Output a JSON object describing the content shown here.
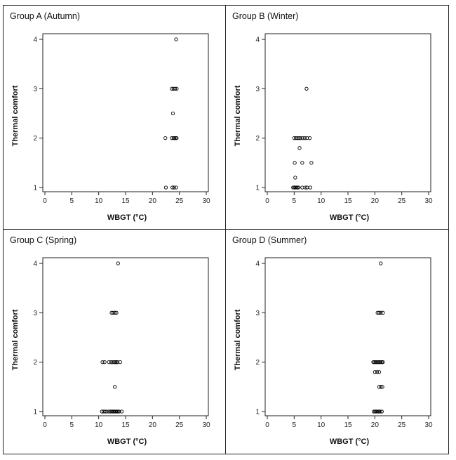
{
  "chart_data": [
    {
      "type": "scatter",
      "title": "Group A (Autumn)",
      "xlabel": "WBGT",
      "xunit": "(°C)",
      "ylabel": "Thermal comfort",
      "xlim": [
        0,
        30
      ],
      "ylim": [
        1,
        4
      ],
      "xticks": [
        0,
        5,
        10,
        15,
        20,
        25,
        30
      ],
      "yticks": [
        1,
        2,
        3,
        4
      ],
      "marker": "open-circle",
      "color": "#000000",
      "points": [
        {
          "x": 24.4,
          "y": 4
        },
        {
          "x": 23.6,
          "y": 3
        },
        {
          "x": 23.9,
          "y": 3
        },
        {
          "x": 24.2,
          "y": 3
        },
        {
          "x": 24.5,
          "y": 3
        },
        {
          "x": 23.8,
          "y": 2.5
        },
        {
          "x": 22.4,
          "y": 2
        },
        {
          "x": 23.6,
          "y": 2
        },
        {
          "x": 23.9,
          "y": 2
        },
        {
          "x": 24.1,
          "y": 2
        },
        {
          "x": 24.3,
          "y": 2
        },
        {
          "x": 24.5,
          "y": 2
        },
        {
          "x": 22.5,
          "y": 1
        },
        {
          "x": 23.7,
          "y": 1
        },
        {
          "x": 24.0,
          "y": 1
        },
        {
          "x": 24.4,
          "y": 1
        }
      ]
    },
    {
      "type": "scatter",
      "title": "Group B (Winter)",
      "xlabel": "WBGT",
      "xunit": "(°C)",
      "ylabel": "Thermal comfort",
      "xlim": [
        0,
        30
      ],
      "ylim": [
        1,
        4
      ],
      "xticks": [
        0,
        5,
        10,
        15,
        20,
        25,
        30
      ],
      "yticks": [
        1,
        2,
        3,
        4
      ],
      "marker": "open-circle",
      "color": "#000000",
      "points": [
        {
          "x": 7.3,
          "y": 3
        },
        {
          "x": 5.0,
          "y": 2
        },
        {
          "x": 5.3,
          "y": 2
        },
        {
          "x": 5.6,
          "y": 2
        },
        {
          "x": 5.9,
          "y": 2
        },
        {
          "x": 6.2,
          "y": 2
        },
        {
          "x": 6.6,
          "y": 2
        },
        {
          "x": 7.0,
          "y": 2
        },
        {
          "x": 7.4,
          "y": 2
        },
        {
          "x": 7.9,
          "y": 2
        },
        {
          "x": 6.0,
          "y": 1.8
        },
        {
          "x": 5.1,
          "y": 1.5
        },
        {
          "x": 6.5,
          "y": 1.5
        },
        {
          "x": 8.2,
          "y": 1.5
        },
        {
          "x": 5.2,
          "y": 1.2
        },
        {
          "x": 4.8,
          "y": 1
        },
        {
          "x": 5.0,
          "y": 1
        },
        {
          "x": 5.2,
          "y": 1
        },
        {
          "x": 5.4,
          "y": 1
        },
        {
          "x": 5.6,
          "y": 1
        },
        {
          "x": 5.8,
          "y": 1
        },
        {
          "x": 6.5,
          "y": 1
        },
        {
          "x": 7.1,
          "y": 1
        },
        {
          "x": 7.4,
          "y": 1
        },
        {
          "x": 8.0,
          "y": 1
        }
      ]
    },
    {
      "type": "scatter",
      "title": "Group C (Spring)",
      "xlabel": "WBGT",
      "xunit": "(°C)",
      "ylabel": "Thermal comfort",
      "xlim": [
        0,
        30
      ],
      "ylim": [
        1,
        4
      ],
      "xticks": [
        0,
        5,
        10,
        15,
        20,
        25,
        30
      ],
      "yticks": [
        1,
        2,
        3,
        4
      ],
      "marker": "open-circle",
      "color": "#000000",
      "points": [
        {
          "x": 13.6,
          "y": 4
        },
        {
          "x": 12.4,
          "y": 3
        },
        {
          "x": 12.7,
          "y": 3
        },
        {
          "x": 13.0,
          "y": 3
        },
        {
          "x": 13.3,
          "y": 3
        },
        {
          "x": 10.7,
          "y": 2
        },
        {
          "x": 11.1,
          "y": 2
        },
        {
          "x": 11.9,
          "y": 2
        },
        {
          "x": 12.3,
          "y": 2
        },
        {
          "x": 12.6,
          "y": 2
        },
        {
          "x": 12.9,
          "y": 2
        },
        {
          "x": 13.1,
          "y": 2
        },
        {
          "x": 13.3,
          "y": 2
        },
        {
          "x": 13.5,
          "y": 2
        },
        {
          "x": 14.0,
          "y": 2
        },
        {
          "x": 13.0,
          "y": 1.5
        },
        {
          "x": 10.6,
          "y": 1
        },
        {
          "x": 10.9,
          "y": 1
        },
        {
          "x": 11.2,
          "y": 1
        },
        {
          "x": 11.5,
          "y": 1
        },
        {
          "x": 11.9,
          "y": 1
        },
        {
          "x": 12.2,
          "y": 1
        },
        {
          "x": 12.4,
          "y": 1
        },
        {
          "x": 12.6,
          "y": 1
        },
        {
          "x": 12.8,
          "y": 1
        },
        {
          "x": 13.0,
          "y": 1
        },
        {
          "x": 13.2,
          "y": 1
        },
        {
          "x": 13.4,
          "y": 1
        },
        {
          "x": 13.6,
          "y": 1
        },
        {
          "x": 13.8,
          "y": 1
        },
        {
          "x": 14.3,
          "y": 1
        }
      ]
    },
    {
      "type": "scatter",
      "title": "Group D (Summer)",
      "xlabel": "WBGT",
      "xunit": "(°C)",
      "ylabel": "Thermal comfort",
      "xlim": [
        0,
        30
      ],
      "ylim": [
        1,
        4
      ],
      "xticks": [
        0,
        5,
        10,
        15,
        20,
        25,
        30
      ],
      "yticks": [
        1,
        2,
        3,
        4
      ],
      "marker": "open-circle",
      "color": "#000000",
      "points": [
        {
          "x": 21.1,
          "y": 4
        },
        {
          "x": 20.5,
          "y": 3
        },
        {
          "x": 20.8,
          "y": 3
        },
        {
          "x": 21.1,
          "y": 3
        },
        {
          "x": 21.5,
          "y": 3
        },
        {
          "x": 19.7,
          "y": 2
        },
        {
          "x": 19.9,
          "y": 2
        },
        {
          "x": 20.1,
          "y": 2
        },
        {
          "x": 20.3,
          "y": 2
        },
        {
          "x": 20.5,
          "y": 2
        },
        {
          "x": 20.7,
          "y": 2
        },
        {
          "x": 20.9,
          "y": 2
        },
        {
          "x": 21.1,
          "y": 2
        },
        {
          "x": 21.3,
          "y": 2
        },
        {
          "x": 21.5,
          "y": 2
        },
        {
          "x": 20.0,
          "y": 1.8
        },
        {
          "x": 20.4,
          "y": 1.8
        },
        {
          "x": 20.8,
          "y": 1.8
        },
        {
          "x": 20.8,
          "y": 1.5
        },
        {
          "x": 21.1,
          "y": 1.5
        },
        {
          "x": 21.4,
          "y": 1.5
        },
        {
          "x": 19.8,
          "y": 1
        },
        {
          "x": 20.0,
          "y": 1
        },
        {
          "x": 20.2,
          "y": 1
        },
        {
          "x": 20.4,
          "y": 1
        },
        {
          "x": 20.6,
          "y": 1
        },
        {
          "x": 20.8,
          "y": 1
        },
        {
          "x": 21.0,
          "y": 1
        },
        {
          "x": 21.3,
          "y": 1
        }
      ]
    }
  ]
}
